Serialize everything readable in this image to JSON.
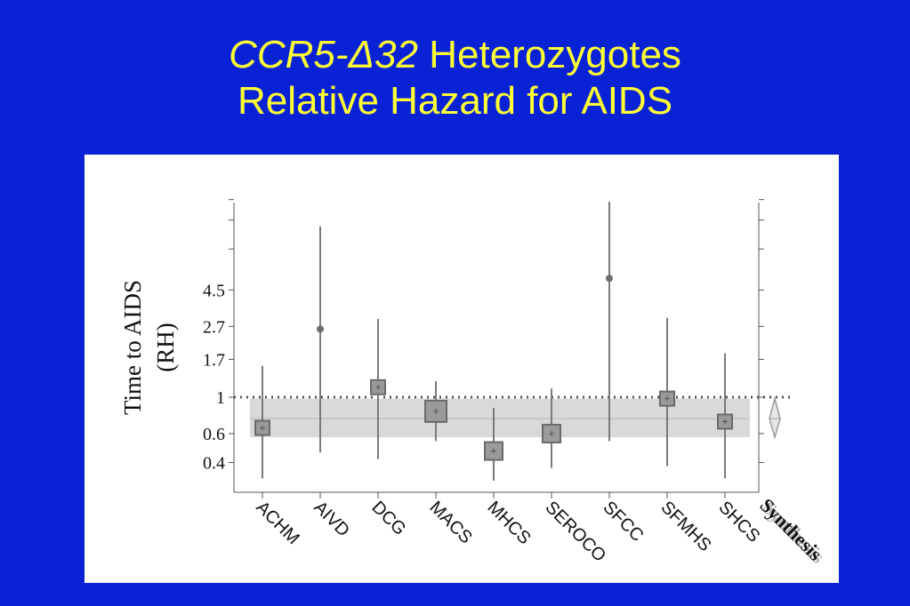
{
  "title": {
    "part1": "CCR5-",
    "delta": "Δ",
    "part2": "32",
    "part3": " Heterozygotes",
    "line2": "Relative Hazard for AIDS"
  },
  "chart_data": {
    "type": "scatter",
    "style": "forest-plot",
    "ylabel_line1": "Time to AIDS",
    "ylabel_line2": "(RH)",
    "yscale": "log",
    "ylim": [
      0.3,
      16
    ],
    "yticks": [
      {
        "value": 0.4,
        "label": "0.4"
      },
      {
        "value": 0.6,
        "label": "0.6"
      },
      {
        "value": 1,
        "label": "1"
      },
      {
        "value": 1.7,
        "label": "1.7"
      },
      {
        "value": 2.7,
        "label": "2.7"
      },
      {
        "value": 4.5,
        "label": "4.5"
      }
    ],
    "reference_line": 1,
    "categories": [
      "ACHM",
      "AIVD",
      "DCG",
      "MACS",
      "MHCS",
      "SEROCO",
      "SFCC",
      "SFMHS",
      "SHCS"
    ],
    "points": [
      {
        "label": "ACHM",
        "rh": 0.65,
        "ci_low": 0.32,
        "ci_high": 1.55,
        "weight": 2
      },
      {
        "label": "AIVD",
        "rh": 2.6,
        "ci_low": 0.46,
        "ci_high": 11.0,
        "weight": 1
      },
      {
        "label": "DCG",
        "rh": 1.15,
        "ci_low": 0.42,
        "ci_high": 3.0,
        "weight": 2
      },
      {
        "label": "MACS",
        "rh": 0.82,
        "ci_low": 0.54,
        "ci_high": 1.25,
        "weight": 4
      },
      {
        "label": "MHCS",
        "rh": 0.47,
        "ci_low": 0.31,
        "ci_high": 0.86,
        "weight": 3
      },
      {
        "label": "SEROCO",
        "rh": 0.6,
        "ci_low": 0.37,
        "ci_high": 1.13,
        "weight": 3
      },
      {
        "label": "SFCC",
        "rh": 5.3,
        "ci_low": 0.54,
        "ci_high": 15.5,
        "weight": 1
      },
      {
        "label": "SFMHS",
        "rh": 0.98,
        "ci_low": 0.38,
        "ci_high": 3.05,
        "weight": 2
      },
      {
        "label": "SHCS",
        "rh": 0.71,
        "ci_low": 0.32,
        "ci_high": 1.85,
        "weight": 2
      }
    ],
    "synthesis": {
      "label": "Synthesis",
      "rh": 0.74,
      "ci_low": 0.57,
      "ci_high": 0.98
    },
    "colors": {
      "marker": "#7a7a7a",
      "marker_fill": "#9a9a9a",
      "band": "#d9d9d9",
      "axis": "#555555",
      "text": "#111111"
    }
  }
}
